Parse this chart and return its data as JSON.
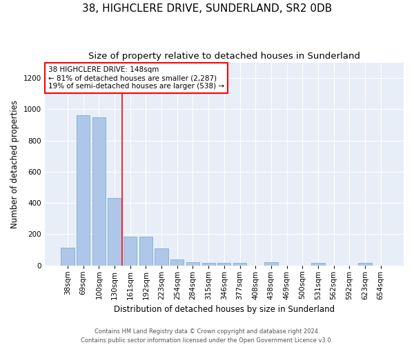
{
  "title": "38, HIGHCLERE DRIVE, SUNDERLAND, SR2 0DB",
  "subtitle": "Size of property relative to detached houses in Sunderland",
  "xlabel": "Distribution of detached houses by size in Sunderland",
  "ylabel": "Number of detached properties",
  "categories": [
    "38sqm",
    "69sqm",
    "100sqm",
    "130sqm",
    "161sqm",
    "192sqm",
    "223sqm",
    "254sqm",
    "284sqm",
    "315sqm",
    "346sqm",
    "377sqm",
    "408sqm",
    "438sqm",
    "469sqm",
    "500sqm",
    "531sqm",
    "562sqm",
    "592sqm",
    "623sqm",
    "654sqm"
  ],
  "values": [
    115,
    960,
    950,
    430,
    185,
    185,
    110,
    40,
    22,
    18,
    18,
    18,
    0,
    22,
    0,
    0,
    18,
    0,
    0,
    18,
    0
  ],
  "bar_color": "#aec6e8",
  "bar_edge_color": "#7bafd4",
  "vline_x": 3.5,
  "vline_color": "red",
  "annotation_text": "38 HIGHCLERE DRIVE: 148sqm\n← 81% of detached houses are smaller (2,287)\n19% of semi-detached houses are larger (538) →",
  "ylim": [
    0,
    1300
  ],
  "yticks": [
    0,
    200,
    400,
    600,
    800,
    1000,
    1200
  ],
  "background_color": "#e8eef7",
  "footer": "Contains HM Land Registry data © Crown copyright and database right 2024.\nContains public sector information licensed under the Open Government Licence v3.0.",
  "title_fontsize": 11,
  "subtitle_fontsize": 9.5,
  "xlabel_fontsize": 8.5,
  "ylabel_fontsize": 8.5,
  "tick_fontsize": 7.5,
  "annotation_fontsize": 7.5,
  "footer_fontsize": 6
}
